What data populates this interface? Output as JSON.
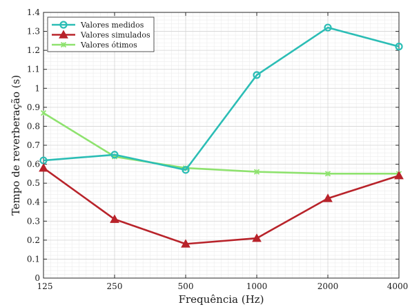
{
  "chart_data": {
    "type": "line",
    "categories": [
      "125",
      "250",
      "500",
      "1000",
      "2000",
      "4000"
    ],
    "xlabel": "Frequência (Hz)",
    "ylabel": "Tempo de reverberação (s)",
    "ylim": [
      0,
      1.4
    ],
    "yticks": [
      "0",
      "0.1",
      "0.2",
      "0.3",
      "0.4",
      "0.5",
      "0.6",
      "0.7",
      "0.8",
      "0.9",
      "1",
      "1.1",
      "1.2",
      "1.3",
      "1.4"
    ],
    "grid": true,
    "legend_position": "top-left",
    "series": [
      {
        "name": "Valores medidos",
        "marker": "circle",
        "color": "#2bbdb5",
        "values": [
          0.62,
          0.65,
          0.57,
          1.07,
          1.32,
          1.22
        ]
      },
      {
        "name": "Valores simulados",
        "marker": "triangle",
        "color": "#b8232a",
        "values": [
          0.58,
          0.31,
          0.18,
          0.21,
          0.42,
          0.54
        ]
      },
      {
        "name": "Valores ótimos",
        "marker": "cross",
        "color": "#8ee26e",
        "values": [
          0.87,
          0.64,
          0.58,
          0.56,
          0.55,
          0.55
        ]
      }
    ]
  }
}
